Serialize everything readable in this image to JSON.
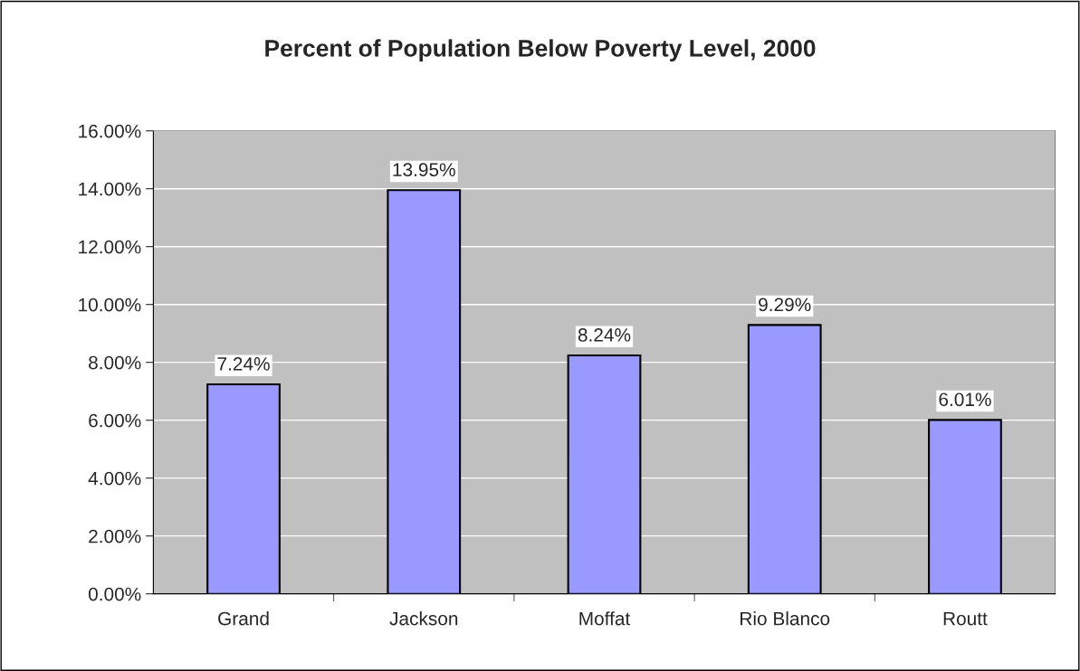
{
  "chart_data": {
    "type": "bar",
    "title": "Percent of Population Below Poverty Level, 2000",
    "categories": [
      "Grand",
      "Jackson",
      "Moffat",
      "Rio Blanco",
      "Routt"
    ],
    "values": [
      7.24,
      13.95,
      8.24,
      9.29,
      6.01
    ],
    "value_labels": [
      "7.24%",
      "13.95%",
      "8.24%",
      "9.29%",
      "6.01%"
    ],
    "color": "#9999ff",
    "ylim": [
      0,
      16
    ],
    "yticks": [
      {
        "value": 0,
        "label": "0.00%"
      },
      {
        "value": 2,
        "label": "2.00%"
      },
      {
        "value": 4,
        "label": "4.00%"
      },
      {
        "value": 6,
        "label": "6.00%"
      },
      {
        "value": 8,
        "label": "8.00%"
      },
      {
        "value": 10,
        "label": "10.00%"
      },
      {
        "value": 12,
        "label": "12.00%"
      },
      {
        "value": 14,
        "label": "14.00%"
      },
      {
        "value": 16,
        "label": "16.00%"
      }
    ],
    "grid": "y"
  }
}
